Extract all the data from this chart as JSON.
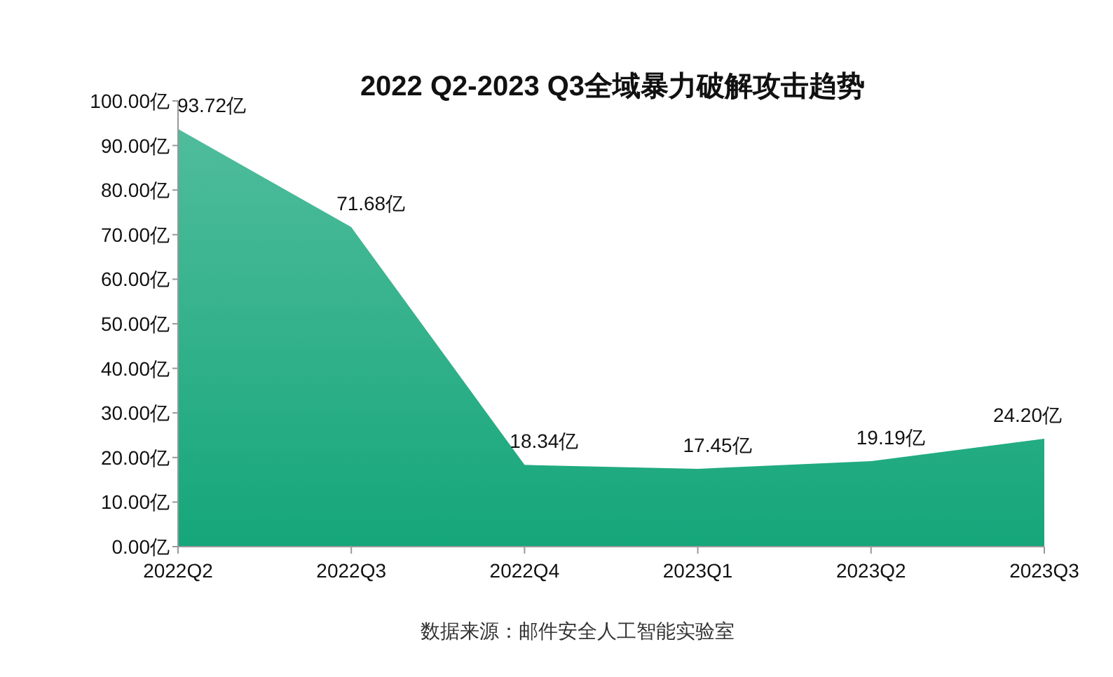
{
  "chart_data": {
    "type": "area",
    "title": "2022 Q2-2023 Q3全域暴力破解攻击趋势",
    "categories": [
      "2022Q2",
      "2022Q3",
      "2022Q4",
      "2023Q1",
      "2023Q2",
      "2023Q3"
    ],
    "series": [
      {
        "color": "#15a67a",
        "values": [
          93.72,
          71.68,
          18.34,
          17.45,
          19.19,
          24.2
        ],
        "value_labels": [
          "93.72亿",
          "71.68亿",
          "18.34亿",
          "17.45亿",
          "19.19亿",
          "24.20亿"
        ]
      }
    ],
    "ylim": [
      0,
      100
    ],
    "yticks": [
      {
        "value": 0,
        "label": "0.00亿"
      },
      {
        "value": 10,
        "label": "10.00亿"
      },
      {
        "value": 20,
        "label": "20.00亿"
      },
      {
        "value": 30,
        "label": "30.00亿"
      },
      {
        "value": 40,
        "label": "40.00亿"
      },
      {
        "value": 50,
        "label": "50.00亿"
      },
      {
        "value": 60,
        "label": "60.00亿"
      },
      {
        "value": 70,
        "label": "70.00亿"
      },
      {
        "value": 80,
        "label": "80.00亿"
      },
      {
        "value": 90,
        "label": "90.00亿"
      },
      {
        "value": 100,
        "label": "100.00亿"
      }
    ],
    "grid": false,
    "annotations": [
      "数据来源：邮件安全人工智能实验室"
    ]
  }
}
